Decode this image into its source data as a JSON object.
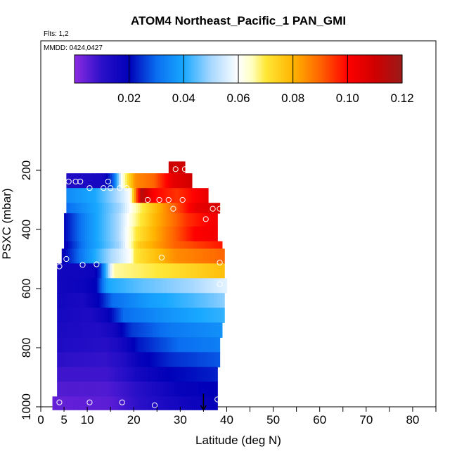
{
  "page": {
    "title": "ATOM4 Northeast_Pacific_1 PAN_GMI",
    "flights_label": "Flts: 1,2",
    "dates_label": "MMDD: 0424,0427"
  },
  "chart_data": {
    "type": "heatmap",
    "title": "ATOM4 Northeast_Pacific_1 PAN_GMI",
    "xlabel": "Latitude (deg N)",
    "ylabel": "PSXC (mbar)",
    "xlim": [
      0,
      85
    ],
    "ylim": [
      1000,
      100
    ],
    "x_ticks": [
      0,
      5,
      10,
      20,
      30,
      40,
      50,
      60,
      70,
      80
    ],
    "x_minor_ticks": [
      15,
      25,
      35,
      45,
      55,
      65,
      75,
      85
    ],
    "y_ticks": [
      200,
      400,
      600,
      800,
      1000
    ],
    "colorbar": {
      "min": 0,
      "max": 0.12,
      "ticks": [
        "0.02",
        "0.04",
        "0.06",
        "0.08",
        "0.10",
        "0.12"
      ],
      "tick_values": [
        0.02,
        0.04,
        0.06,
        0.08,
        0.1,
        0.12
      ],
      "stops": [
        {
          "v": 0.0,
          "c": "#8c2be2"
        },
        {
          "v": 0.01,
          "c": "#2a10c8"
        },
        {
          "v": 0.02,
          "c": "#0000b8"
        },
        {
          "v": 0.03,
          "c": "#0a6ef0"
        },
        {
          "v": 0.04,
          "c": "#18a8ff"
        },
        {
          "v": 0.05,
          "c": "#a8d8ff"
        },
        {
          "v": 0.06,
          "c": "#ffffff"
        },
        {
          "v": 0.065,
          "c": "#ffffc0"
        },
        {
          "v": 0.07,
          "c": "#ffe838"
        },
        {
          "v": 0.08,
          "c": "#ffb400"
        },
        {
          "v": 0.09,
          "c": "#ff6400"
        },
        {
          "v": 0.1,
          "c": "#ff0000"
        },
        {
          "v": 0.11,
          "c": "#d00000"
        },
        {
          "v": 0.12,
          "c": "#9a1a1a"
        }
      ]
    },
    "grid": [
      {
        "p_top": 170,
        "p_bot": 210,
        "lat0": 27.5,
        "lat1": 31,
        "k": [
          [
            0,
            0.11
          ],
          [
            1,
            0.11
          ]
        ]
      },
      {
        "p_top": 210,
        "p_bot": 260,
        "lat0": 5.5,
        "lat1": 32.5,
        "k": [
          [
            0,
            0.012
          ],
          [
            0.3,
            0.015
          ],
          [
            0.38,
            0.03
          ],
          [
            0.44,
            0.06
          ],
          [
            0.55,
            0.085
          ],
          [
            0.7,
            0.09
          ],
          [
            0.85,
            0.105
          ],
          [
            1,
            0.11
          ]
        ]
      },
      {
        "p_top": 260,
        "p_bot": 310,
        "lat0": 5.5,
        "lat1": 36,
        "k": [
          [
            0,
            0.035
          ],
          [
            0.2,
            0.04
          ],
          [
            0.35,
            0.05
          ],
          [
            0.45,
            0.06
          ],
          [
            0.53,
            0.115
          ],
          [
            0.62,
            0.1
          ],
          [
            0.78,
            0.095
          ],
          [
            0.9,
            0.1
          ],
          [
            1,
            0.105
          ]
        ]
      },
      {
        "p_top": 310,
        "p_bot": 345,
        "lat0": 5.5,
        "lat1": 38.5,
        "k": [
          [
            0,
            0.03
          ],
          [
            0.2,
            0.04
          ],
          [
            0.35,
            0.05
          ],
          [
            0.45,
            0.065
          ],
          [
            0.55,
            0.075
          ],
          [
            0.7,
            0.09
          ],
          [
            0.85,
            0.105
          ],
          [
            1,
            0.108
          ]
        ]
      },
      {
        "p_top": 345,
        "p_bot": 390,
        "lat0": 5,
        "lat1": 38,
        "k": [
          [
            0,
            0.02
          ],
          [
            0.15,
            0.035
          ],
          [
            0.35,
            0.05
          ],
          [
            0.45,
            0.065
          ],
          [
            0.6,
            0.08
          ],
          [
            0.8,
            0.095
          ],
          [
            1,
            0.103
          ]
        ]
      },
      {
        "p_top": 390,
        "p_bot": 440,
        "lat0": 5,
        "lat1": 38,
        "k": [
          [
            0,
            0.02
          ],
          [
            0.15,
            0.035
          ],
          [
            0.35,
            0.05
          ],
          [
            0.47,
            0.07
          ],
          [
            0.65,
            0.085
          ],
          [
            0.85,
            0.1
          ],
          [
            1,
            0.103
          ]
        ]
      },
      {
        "p_top": 440,
        "p_bot": 465,
        "lat0": 5,
        "lat1": 39,
        "k": [
          [
            0,
            0.018
          ],
          [
            0.15,
            0.035
          ],
          [
            0.35,
            0.05
          ],
          [
            0.47,
            0.075
          ],
          [
            0.7,
            0.09
          ],
          [
            1,
            0.098
          ]
        ]
      },
      {
        "p_top": 465,
        "p_bot": 515,
        "lat0": 4.5,
        "lat1": 39.5,
        "k": [
          [
            0,
            0.018
          ],
          [
            0.15,
            0.035
          ],
          [
            0.3,
            0.05
          ],
          [
            0.42,
            0.06
          ],
          [
            0.45,
            0.07
          ],
          [
            0.7,
            0.085
          ],
          [
            1,
            0.09
          ]
        ]
      },
      {
        "p_top": 515,
        "p_bot": 565,
        "lat0": 3.5,
        "lat1": 39.5,
        "k": [
          [
            0,
            0.016
          ],
          [
            0.22,
            0.017
          ],
          [
            0.26,
            0.025
          ],
          [
            0.3,
            0.045
          ],
          [
            0.34,
            0.066
          ],
          [
            0.6,
            0.07
          ],
          [
            0.85,
            0.075
          ],
          [
            1,
            0.078
          ]
        ]
      },
      {
        "p_top": 565,
        "p_bot": 615,
        "lat0": 3.5,
        "lat1": 40,
        "k": [
          [
            0,
            0.016
          ],
          [
            0.15,
            0.017
          ],
          [
            0.23,
            0.02
          ],
          [
            0.3,
            0.04
          ],
          [
            0.5,
            0.045
          ],
          [
            0.8,
            0.05
          ],
          [
            1,
            0.057
          ]
        ]
      },
      {
        "p_top": 615,
        "p_bot": 665,
        "lat0": 3.5,
        "lat1": 39.5,
        "k": [
          [
            0,
            0.016
          ],
          [
            0.15,
            0.014
          ],
          [
            0.25,
            0.02
          ],
          [
            0.33,
            0.03
          ],
          [
            0.55,
            0.038
          ],
          [
            0.8,
            0.043
          ],
          [
            1,
            0.048
          ]
        ]
      },
      {
        "p_top": 665,
        "p_bot": 715,
        "lat0": 3.5,
        "lat1": 39.5,
        "k": [
          [
            0,
            0.015
          ],
          [
            0.2,
            0.013
          ],
          [
            0.3,
            0.018
          ],
          [
            0.4,
            0.03
          ],
          [
            0.6,
            0.035
          ],
          [
            0.85,
            0.04
          ],
          [
            1,
            0.042
          ]
        ]
      },
      {
        "p_top": 715,
        "p_bot": 765,
        "lat0": 3.5,
        "lat1": 39,
        "k": [
          [
            0,
            0.014
          ],
          [
            0.25,
            0.012
          ],
          [
            0.35,
            0.016
          ],
          [
            0.45,
            0.025
          ],
          [
            0.7,
            0.032
          ],
          [
            1,
            0.036
          ]
        ]
      },
      {
        "p_top": 765,
        "p_bot": 815,
        "lat0": 3.5,
        "lat1": 38.5,
        "k": [
          [
            0,
            0.013
          ],
          [
            0.3,
            0.011
          ],
          [
            0.4,
            0.015
          ],
          [
            0.5,
            0.022
          ],
          [
            0.75,
            0.03
          ],
          [
            1,
            0.033
          ]
        ]
      },
      {
        "p_top": 815,
        "p_bot": 865,
        "lat0": 3.5,
        "lat1": 38.5,
        "k": [
          [
            0,
            0.01
          ],
          [
            0.3,
            0.009
          ],
          [
            0.4,
            0.012
          ],
          [
            0.5,
            0.018
          ],
          [
            0.7,
            0.024
          ],
          [
            1,
            0.028
          ]
        ]
      },
      {
        "p_top": 865,
        "p_bot": 915,
        "lat0": 3.5,
        "lat1": 38,
        "k": [
          [
            0,
            0.008
          ],
          [
            0.3,
            0.008
          ],
          [
            0.4,
            0.01
          ],
          [
            0.5,
            0.015
          ],
          [
            0.7,
            0.02
          ],
          [
            1,
            0.023
          ]
        ]
      },
      {
        "p_top": 915,
        "p_bot": 965,
        "lat0": 3.5,
        "lat1": 38,
        "k": [
          [
            0,
            0.006
          ],
          [
            0.3,
            0.006
          ],
          [
            0.45,
            0.009
          ],
          [
            0.55,
            0.012
          ],
          [
            0.75,
            0.018
          ],
          [
            1,
            0.02
          ]
        ]
      },
      {
        "p_top": 965,
        "p_bot": 1010,
        "lat0": 2.5,
        "lat1": 38,
        "k": [
          [
            0,
            0.004
          ],
          [
            0.35,
            0.005
          ],
          [
            0.45,
            0.008
          ],
          [
            0.6,
            0.012
          ],
          [
            0.8,
            0.016
          ],
          [
            1,
            0.019
          ]
        ]
      }
    ],
    "points": [
      [
        29,
        196
      ],
      [
        31,
        196
      ],
      [
        6,
        238
      ],
      [
        7.5,
        238
      ],
      [
        8.5,
        238
      ],
      [
        14.5,
        238
      ],
      [
        10.5,
        260
      ],
      [
        13.5,
        260
      ],
      [
        15,
        260
      ],
      [
        17,
        260
      ],
      [
        18.5,
        260
      ],
      [
        23,
        300
      ],
      [
        25.5,
        300
      ],
      [
        27.5,
        300
      ],
      [
        30.5,
        300
      ],
      [
        28.5,
        330
      ],
      [
        37,
        330
      ],
      [
        38.5,
        330
      ],
      [
        35.5,
        365
      ],
      [
        5.5,
        500
      ],
      [
        26,
        495
      ],
      [
        4,
        525
      ],
      [
        9,
        520
      ],
      [
        12,
        518
      ],
      [
        38.5,
        512
      ],
      [
        38.5,
        585
      ],
      [
        4,
        985
      ],
      [
        10.5,
        985
      ],
      [
        17.5,
        985
      ],
      [
        24.5,
        995
      ],
      [
        38,
        975
      ]
    ],
    "arrow": {
      "lat": 35,
      "p_from": 955,
      "p_to": 1010
    }
  }
}
